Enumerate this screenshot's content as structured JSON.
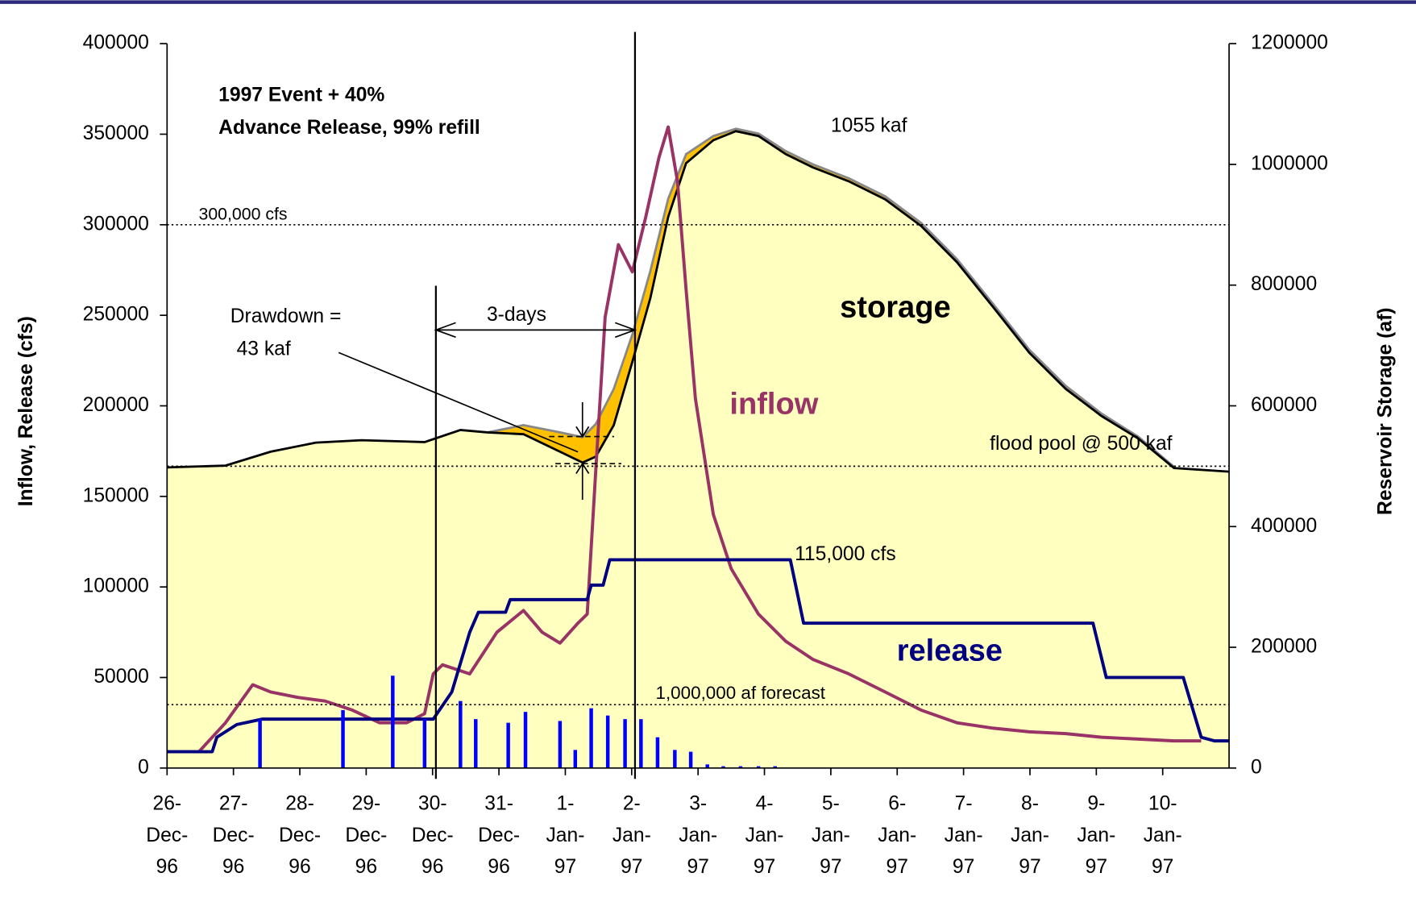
{
  "chart_data": {
    "type": "combo",
    "title": [
      "1997 Event + 40%",
      "Advance Release, 99% refill"
    ],
    "y_label": "Inflow, Release (cfs)",
    "y2_label": "Reservoir Storage (af)",
    "xlim": [
      0,
      16
    ],
    "xticks": [
      {
        "value": 0,
        "label": "26-Dec-96"
      },
      {
        "value": 1,
        "label": "27-Dec-96"
      },
      {
        "value": 2,
        "label": "28-Dec-96"
      },
      {
        "value": 3,
        "label": "29-Dec-96"
      },
      {
        "value": 4,
        "label": "30-Dec-96"
      },
      {
        "value": 5,
        "label": "31-Dec-96"
      },
      {
        "value": 6,
        "label": "1-Jan-97"
      },
      {
        "value": 7,
        "label": "2-Jan-97"
      },
      {
        "value": 8,
        "label": "3-Jan-97"
      },
      {
        "value": 9,
        "label": "4-Jan-97"
      },
      {
        "value": 10,
        "label": "5-Jan-97"
      },
      {
        "value": 11,
        "label": "6-Jan-97"
      },
      {
        "value": 12,
        "label": "7-Jan-97"
      },
      {
        "value": 13,
        "label": "8-Jan-97"
      },
      {
        "value": 14,
        "label": "9-Jan-97"
      },
      {
        "value": 15,
        "label": "10-Jan-97"
      }
    ],
    "ylim": [
      0,
      400000
    ],
    "yticks": [
      0,
      50000,
      100000,
      150000,
      200000,
      250000,
      300000,
      350000,
      400000
    ],
    "y2lim": [
      0,
      1200000
    ],
    "y2ticks": [
      0,
      200000,
      400000,
      600000,
      800000,
      1000000,
      1200000
    ],
    "series": [
      {
        "type": "area",
        "axis": "y2",
        "color": "#ffc000",
        "x": [
          4.83,
          5.37,
          5.92,
          6.26,
          6.46,
          6.73,
          7.01,
          7.28,
          7.55,
          7.82,
          8.23,
          8.57,
          8.91,
          9.32,
          9.73,
          10.27,
          10.82,
          11.36,
          11.9,
          12.45,
          12.99,
          13.54,
          14.08,
          14.63,
          15.17
        ],
        "values": [
          556000,
          568000,
          556000,
          548000,
          570000,
          628000,
          718000,
          823000,
          943000,
          1017000,
          1047000,
          1059000,
          1051000,
          1022000,
          1000000,
          977000,
          947000,
          903000,
          843000,
          768000,
          693000,
          633000,
          587000,
          549000,
          499000
        ]
      },
      {
        "type": "area",
        "axis": "y2",
        "color": "#ffffc0",
        "x": [
          0,
          0.88,
          1.56,
          2.24,
          2.93,
          3.88,
          4.42,
          4.83,
          5.37,
          5.92,
          6.26,
          6.46,
          6.73,
          7.01,
          7.28,
          7.55,
          7.82,
          8.23,
          8.57,
          8.91,
          9.32,
          9.73,
          10.27,
          10.82,
          11.36,
          11.9,
          12.45,
          12.99,
          13.54,
          14.08,
          14.63,
          15.17,
          16
        ],
        "values": [
          498000,
          501000,
          524000,
          539000,
          543000,
          540000,
          560000,
          556000,
          553000,
          524000,
          506000,
          516000,
          568000,
          673000,
          778000,
          913000,
          1002000,
          1040000,
          1055000,
          1047000,
          1017000,
          995000,
          972000,
          942000,
          898000,
          838000,
          763000,
          688000,
          628000,
          583000,
          546000,
          497000,
          491000
        ]
      },
      {
        "type": "line",
        "color": "#993366",
        "x": [
          0,
          0.48,
          0.88,
          1.29,
          1.56,
          1.97,
          2.38,
          2.79,
          3.2,
          3.61,
          3.88,
          4.01,
          4.15,
          4.56,
          4.97,
          5.37,
          5.65,
          5.92,
          6.19,
          6.33,
          6.46,
          6.6,
          6.8,
          7.01,
          7.21,
          7.41,
          7.55,
          7.69,
          7.82,
          7.96,
          8.23,
          8.5,
          8.91,
          9.32,
          9.73,
          10.27,
          10.82,
          11.36,
          11.9,
          12.45,
          12.99,
          13.54,
          14.08,
          14.63,
          15.17,
          15.58
        ],
        "values": [
          9000,
          9000,
          25000,
          46000,
          42000,
          39000,
          37000,
          32000,
          25000,
          25000,
          30000,
          52000,
          57000,
          52000,
          75000,
          87000,
          75000,
          69000,
          80000,
          85000,
          165000,
          249000,
          289000,
          274000,
          304000,
          337000,
          354000,
          324000,
          264000,
          204000,
          140000,
          110000,
          85000,
          70000,
          60000,
          52000,
          42000,
          32000,
          25000,
          22000,
          20000,
          19000,
          17000,
          16000,
          15000,
          15000
        ]
      },
      {
        "type": "line",
        "color": "#000080",
        "x": [
          0,
          0.68,
          0.75,
          1.05,
          1.43,
          4.01,
          4.29,
          4.56,
          4.69,
          5.1,
          5.17,
          6.33,
          6.39,
          6.57,
          6.67,
          9.39,
          9.59,
          13.95,
          14.15,
          15.31,
          15.58,
          15.78,
          16
        ],
        "values": [
          9000,
          9000,
          17000,
          24000,
          27000,
          27000,
          42000,
          75000,
          86000,
          86000,
          93000,
          93000,
          101000,
          101000,
          115000,
          115000,
          80000,
          80000,
          50000,
          50000,
          17000,
          15000,
          15000
        ]
      },
      {
        "type": "bar",
        "color": "#0000ff",
        "x": [
          1.4,
          2.65,
          3.4,
          3.88,
          4.42,
          4.65,
          5.14,
          5.4,
          5.92,
          6.15,
          6.39,
          6.64,
          6.9,
          7.14,
          7.39,
          7.65,
          7.89,
          8.14,
          8.38,
          8.64,
          8.91,
          9.16
        ],
        "values": [
          27000,
          32000,
          51000,
          27000,
          37000,
          27000,
          25000,
          31000,
          26000,
          10000,
          33000,
          29000,
          27000,
          27000,
          17000,
          10000,
          9000,
          2000,
          1000,
          1000,
          1000,
          1000
        ]
      }
    ],
    "hlines": [
      {
        "value": 300000,
        "axis": "y"
      },
      {
        "value": 500000,
        "axis": "y2"
      },
      {
        "value": 35000,
        "axis": "y"
      }
    ],
    "vlines": [
      4.05,
      7.05
    ],
    "annotations": [
      "300,000 cfs",
      "1055 kaf",
      "storage",
      "inflow",
      "release",
      "115,000 cfs",
      "flood pool @ 500 kaf",
      "1,000,000 af forecast",
      "Drawdown =",
      "43 kaf",
      "3-days"
    ]
  }
}
